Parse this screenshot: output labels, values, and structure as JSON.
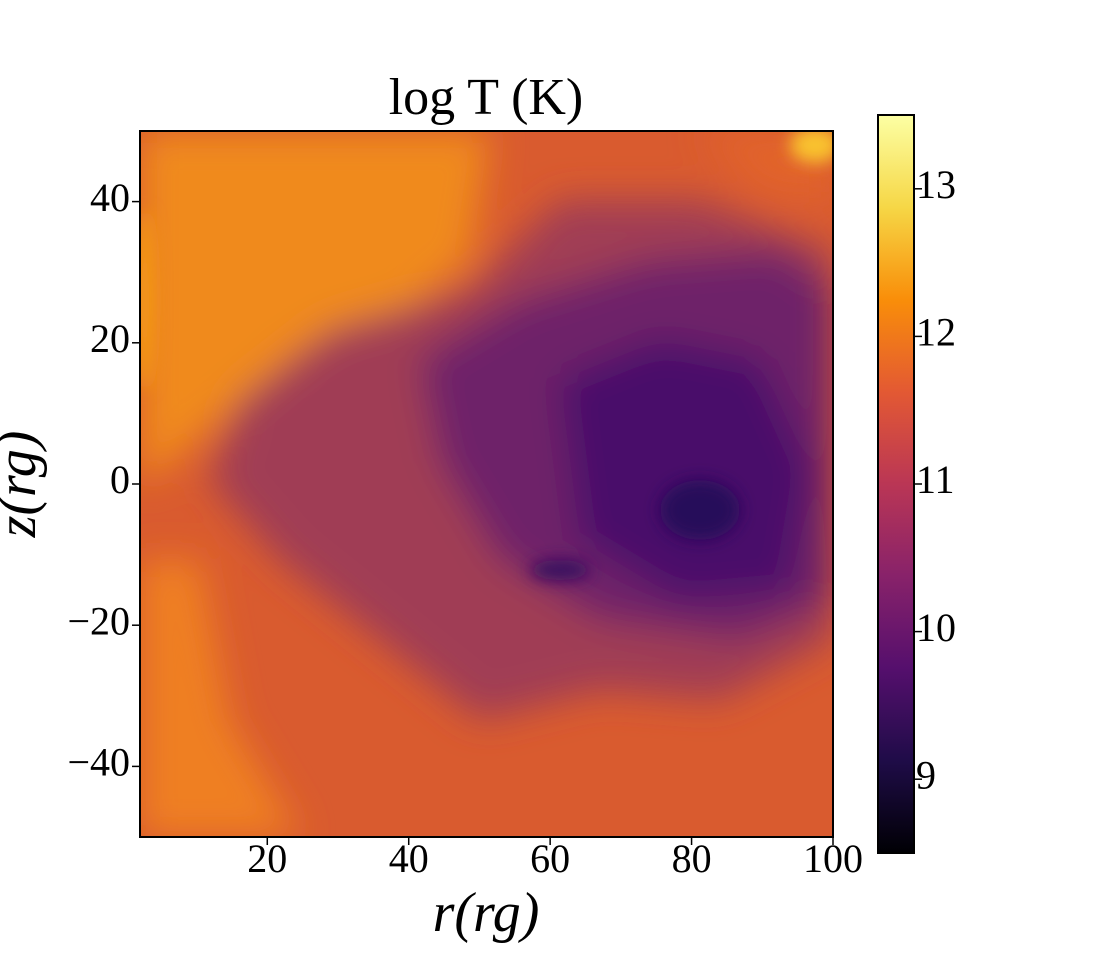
{
  "chart_data": {
    "type": "heatmap",
    "title": "log T (K)",
    "xlabel": "r(rg)",
    "ylabel": "z(rg)",
    "xlim": [
      2,
      100
    ],
    "ylim": [
      -50,
      50
    ],
    "xticks": [
      20,
      40,
      60,
      80,
      100
    ],
    "yticks": [
      {
        "value": -40,
        "label": "−40"
      },
      {
        "value": -20,
        "label": "−20"
      },
      0,
      20,
      40
    ],
    "colormap": "inferno",
    "clim": [
      8.5,
      13.5
    ],
    "cticks": [
      9,
      10,
      11,
      12,
      13
    ]
  }
}
